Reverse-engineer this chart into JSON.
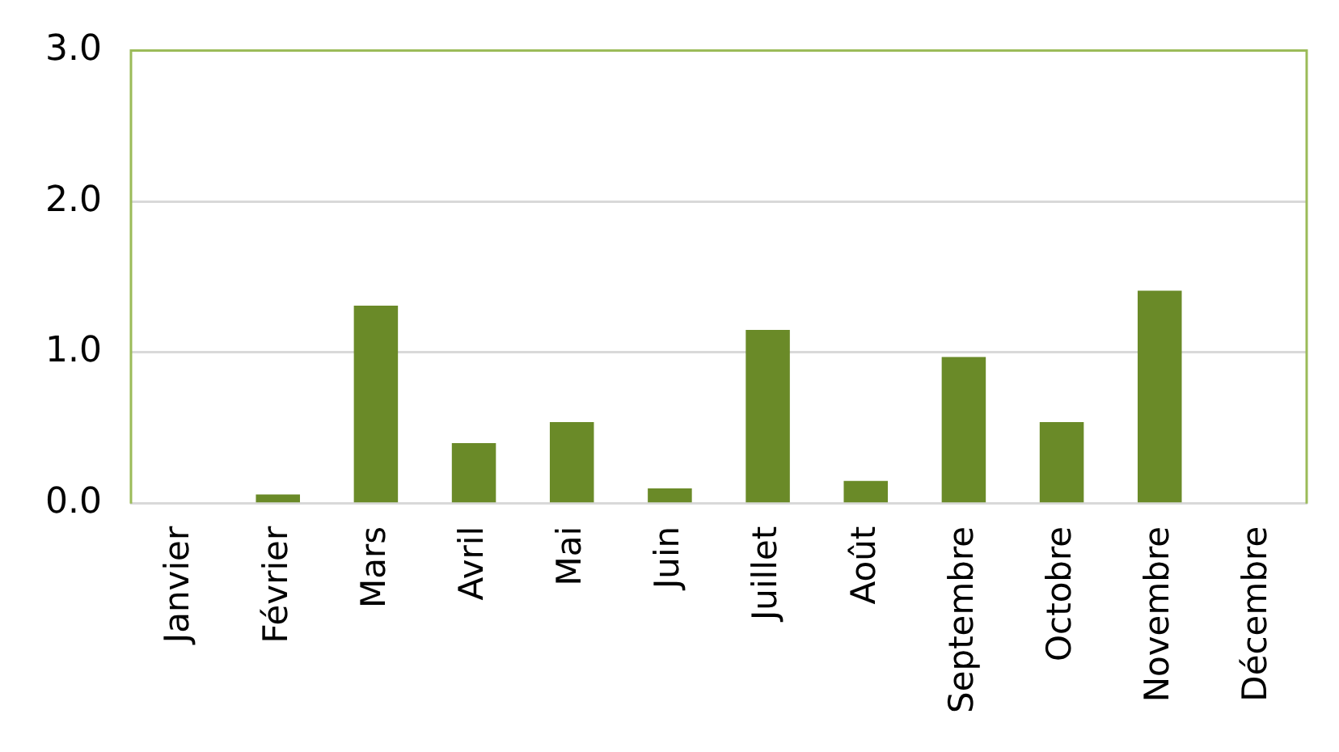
{
  "chart_data": {
    "type": "bar",
    "categories": [
      "Janvier",
      "Février",
      "Mars",
      "Avril",
      "Mai",
      "Juin",
      "Juillet",
      "Août",
      "Septembre",
      "Octobre",
      "Novembre",
      "Décembre"
    ],
    "values": [
      0,
      0.06,
      1.31,
      0.4,
      0.54,
      0.1,
      1.15,
      0.15,
      0.97,
      0.54,
      1.41,
      0
    ],
    "color": "#6a8a28",
    "ylim": [
      0,
      3
    ],
    "yticks": [
      {
        "value": 0,
        "label": "0.0"
      },
      {
        "value": 1,
        "label": "1.0"
      },
      {
        "value": 2,
        "label": "2.0"
      },
      {
        "value": 3,
        "label": "3.0"
      }
    ],
    "grid": "y",
    "legend": false
  }
}
